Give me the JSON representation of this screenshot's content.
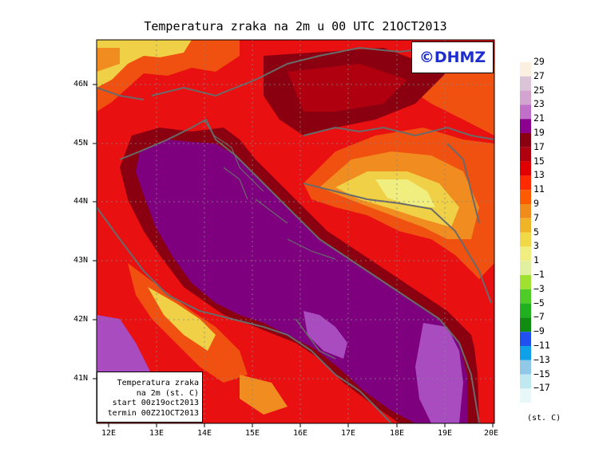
{
  "title": "Temperatura zraka na 2m u 00 UTC 21OCT2013",
  "logo": "©DHMZ",
  "info": {
    "line1": "Temperatura zraka",
    "line2": "na 2m (st. C)",
    "line3": "start 00z19oct2013",
    "line4": "termin 00Z21OCT2013"
  },
  "lat_labels": [
    "46N",
    "45N",
    "44N",
    "43N",
    "42N",
    "41N"
  ],
  "lon_labels": [
    "12E",
    "13E",
    "14E",
    "15E",
    "16E",
    "17E",
    "18E",
    "19E",
    "20E"
  ],
  "legend": {
    "labels": [
      "29",
      "27",
      "25",
      "23",
      "21",
      "19",
      "17",
      "15",
      "13",
      "11",
      "9",
      "7",
      "5",
      "3",
      "1",
      "−1",
      "−3",
      "−5",
      "−7",
      "−9",
      "−11",
      "−13",
      "−15",
      "−17"
    ],
    "unit": "(st. C)",
    "colors": [
      "#fbefe0",
      "#dcc4d8",
      "#d4a4d0",
      "#c070c8",
      "#8c0090",
      "#8a0010",
      "#b00010",
      "#e00000",
      "#ff2a00",
      "#ff5a00",
      "#f08c1c",
      "#f0b428",
      "#f0d846",
      "#f0ee7e",
      "#e0f0a0",
      "#a0e030",
      "#50cc28",
      "#20b020",
      "#108c10",
      "#2050f0",
      "#10a0e8",
      "#90c8e8",
      "#c0e8f0",
      "#e8f8f8"
    ]
  },
  "colors": {
    "sea": "#7e007e",
    "sea_warm": "#a84cc0",
    "coast_red": "#8c0000",
    "land_red": "#e81010",
    "inland_orange": "#f05010",
    "mountain_orange": "#f08c20",
    "highland_yellow": "#f0d046",
    "border": "#6a6a6a"
  }
}
